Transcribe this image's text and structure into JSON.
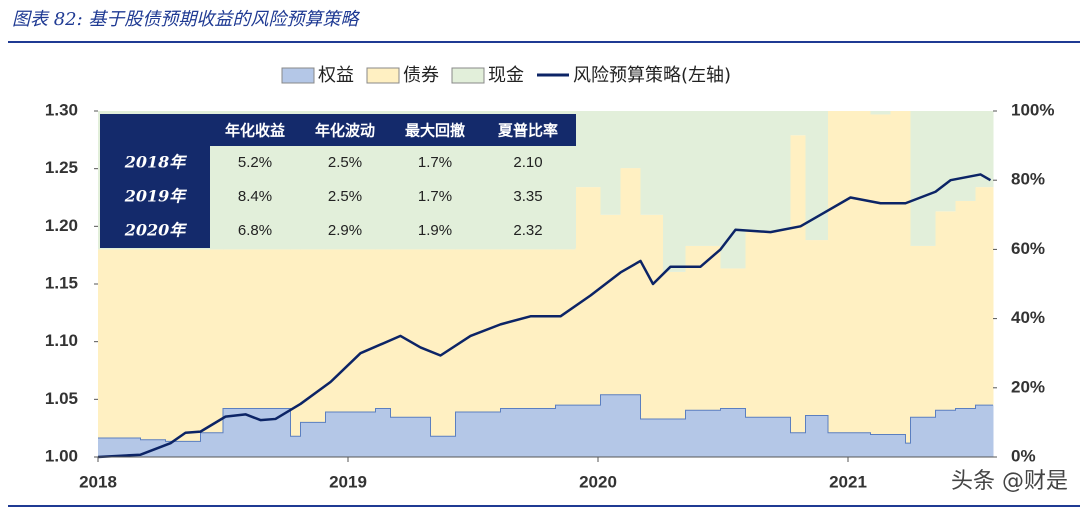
{
  "chart_data": {
    "type": "area",
    "title": "图表 82: 基于股债预期收益的风险预算策略",
    "watermark": "头条 @财是",
    "x": [
      2018.0,
      2018.17,
      2018.27,
      2018.41,
      2018.5,
      2018.77,
      2018.81,
      2018.91,
      2019.11,
      2019.17,
      2019.33,
      2019.43,
      2019.61,
      2019.83,
      2019.91,
      2020.01,
      2020.09,
      2020.17,
      2020.26,
      2020.35,
      2020.49,
      2020.59,
      2020.77,
      2020.83,
      2020.92,
      2021.09,
      2021.17,
      2021.23,
      2021.25,
      2021.35,
      2021.43,
      2021.51
    ],
    "xlim": [
      2018,
      2021.58
    ],
    "xticks": [
      2018,
      2019,
      2020,
      2021
    ],
    "ylim": [
      1.0,
      1.3
    ],
    "yticks": [
      {
        "value": 1.0,
        "label": "1.00"
      },
      {
        "value": 1.05,
        "label": "1.05"
      },
      {
        "value": 1.1,
        "label": "1.10"
      },
      {
        "value": 1.15,
        "label": "1.15"
      },
      {
        "value": 1.2,
        "label": "1.20"
      },
      {
        "value": 1.25,
        "label": "1.25"
      },
      {
        "value": 1.3,
        "label": "1.30"
      }
    ],
    "y2lim": [
      0,
      100
    ],
    "y2ticks": [
      {
        "value": 0,
        "label": "0%"
      },
      {
        "value": 20,
        "label": "20%"
      },
      {
        "value": 40,
        "label": "40%"
      },
      {
        "value": 60,
        "label": "60%"
      },
      {
        "value": 80,
        "label": "80%"
      },
      {
        "value": 100,
        "label": "100%"
      }
    ],
    "series": [
      {
        "name": "权益",
        "type": "step-area",
        "axis": "y2",
        "color": "#b4c7e7",
        "values": [
          5.5,
          5,
          4.5,
          7,
          14,
          6,
          10,
          13,
          14,
          11.5,
          6,
          13,
          14,
          15,
          15,
          18,
          18,
          11,
          11,
          13.5,
          14,
          11.5,
          7,
          12,
          7,
          6.5,
          6.5,
          4,
          11.5,
          13.5,
          14,
          15
        ]
      },
      {
        "name": "债券",
        "type": "step-area",
        "axis": "y2",
        "color": "#fff0c2",
        "values": [
          54.5,
          55,
          55.5,
          53,
          46,
          54,
          50,
          47,
          46,
          48.5,
          54,
          47,
          46,
          45,
          63,
          52,
          65.5,
          59,
          42.5,
          47.5,
          40.5,
          54,
          86,
          50.7,
          93,
          92.5,
          93.5,
          96,
          49.5,
          57.5,
          60,
          63
        ]
      },
      {
        "name": "现金",
        "type": "step-area",
        "axis": "y2",
        "color": "#e2efda",
        "values": [
          40,
          40,
          40,
          40,
          40,
          40,
          40,
          40,
          40,
          40,
          40,
          40,
          40,
          40,
          22,
          30,
          16.5,
          30,
          46.5,
          39,
          45.5,
          34.5,
          7,
          37.3,
          0,
          1,
          0,
          0,
          39,
          29,
          26,
          22
        ]
      },
      {
        "name": "风险预算策略(左轴)",
        "type": "line",
        "axis": "y",
        "color": "#0c2466",
        "x": [
          2018.0,
          2018.17,
          2018.29,
          2018.35,
          2018.41,
          2018.51,
          2018.59,
          2018.65,
          2018.71,
          2018.81,
          2018.93,
          2019.05,
          2019.21,
          2019.29,
          2019.37,
          2019.49,
          2019.61,
          2019.73,
          2019.85,
          2019.97,
          2020.09,
          2020.17,
          2020.22,
          2020.29,
          2020.41,
          2020.49,
          2020.55,
          2020.69,
          2020.81,
          2020.89,
          2021.01,
          2021.13,
          2021.23,
          2021.35,
          2021.41,
          2021.53,
          2021.57
        ],
        "values": [
          1.0,
          1.002,
          1.012,
          1.021,
          1.022,
          1.035,
          1.037,
          1.032,
          1.033,
          1.046,
          1.065,
          1.09,
          1.105,
          1.095,
          1.088,
          1.105,
          1.115,
          1.122,
          1.122,
          1.14,
          1.16,
          1.17,
          1.15,
          1.165,
          1.165,
          1.18,
          1.197,
          1.195,
          1.2,
          1.21,
          1.225,
          1.22,
          1.22,
          1.23,
          1.24,
          1.245,
          1.24
        ]
      }
    ]
  },
  "table": {
    "header": [
      "年化收益",
      "年化波动",
      "最大回撤",
      "夏普比率"
    ],
    "rows": [
      [
        "2018年",
        "5.2%",
        "2.5%",
        "1.7%",
        "2.10"
      ],
      [
        "2019年",
        "8.4%",
        "2.5%",
        "1.7%",
        "3.35"
      ],
      [
        "2020年",
        "6.8%",
        "2.9%",
        "1.9%",
        "2.32"
      ]
    ]
  }
}
